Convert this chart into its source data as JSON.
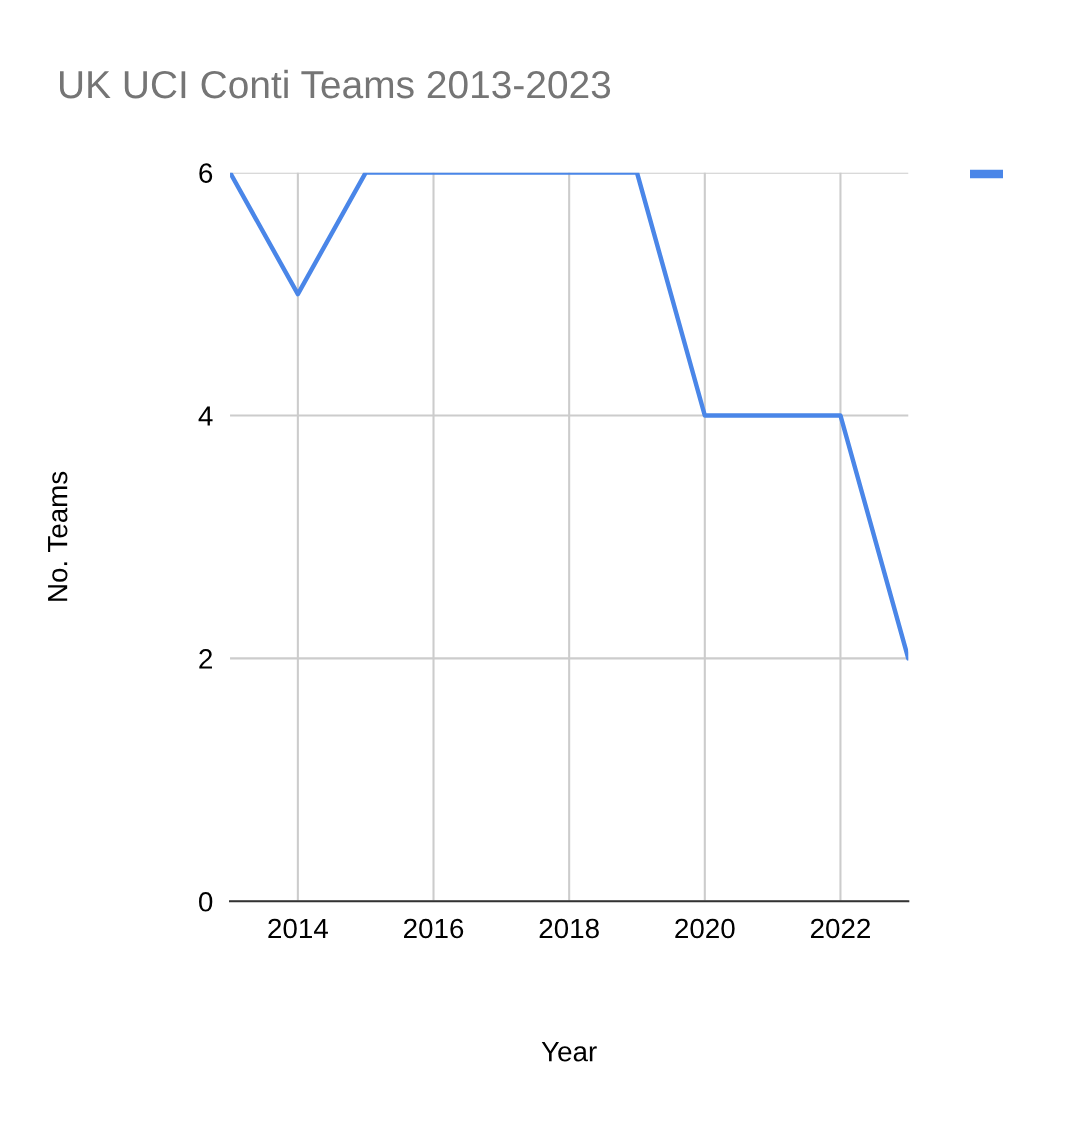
{
  "chart_data": {
    "type": "line",
    "title": "UK UCI Conti Teams 2013-2023",
    "xlabel": "Year",
    "ylabel": "No. Teams",
    "x": [
      2013,
      2014,
      2015,
      2016,
      2017,
      2018,
      2019,
      2020,
      2021,
      2022,
      2023
    ],
    "series": [
      {
        "color": "#4a86e8",
        "values": [
          6,
          5,
          6,
          6,
          6,
          6,
          6,
          4,
          4,
          4,
          2
        ]
      }
    ],
    "xlim": [
      2013,
      2023
    ],
    "xticks": [
      2014,
      2016,
      2018,
      2020,
      2022
    ],
    "ylim": [
      0,
      6
    ],
    "yticks": [
      0,
      2,
      4,
      6
    ],
    "grid": true,
    "marker": "none",
    "line_style": "solid"
  }
}
